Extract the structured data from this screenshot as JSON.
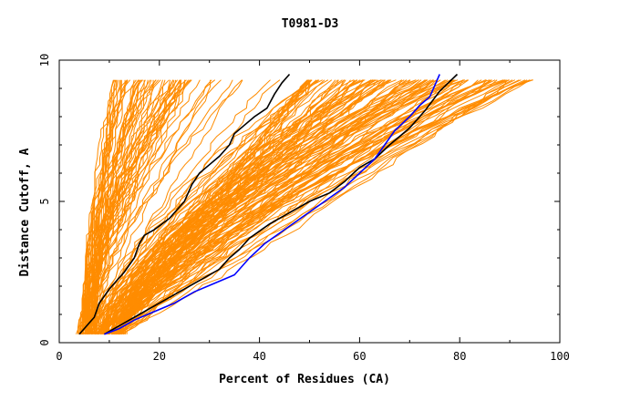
{
  "chart_data": {
    "type": "line",
    "title": "T0981-D3",
    "xlabel": "Percent of Residues (CA)",
    "ylabel": "Distance Cutoff, A",
    "xlim": [
      0,
      100
    ],
    "ylim": [
      0,
      10
    ],
    "x_ticks": [
      "0",
      "20",
      "40",
      "60",
      "80",
      "100"
    ],
    "y_ticks": [
      "0",
      "5",
      "10"
    ],
    "grid": false,
    "legend": "none",
    "colors": {
      "background_curves": "#ff8c00",
      "highlight_black": "#000000",
      "highlight_blue": "#0000ff"
    },
    "highlighted_series": [
      {
        "color": "#000000",
        "x": [
          4.0,
          5.0,
          6.0,
          7.0,
          8.0,
          10.0,
          13.0,
          15.0,
          16.0,
          17.0,
          19.0,
          22.0,
          25.0,
          26.5,
          28.0,
          30.0,
          32.0,
          34.0,
          35.0,
          37.0,
          39.0,
          41.5,
          43.0,
          44.5,
          46.0
        ],
        "y": [
          0.3,
          0.5,
          0.7,
          0.9,
          1.4,
          1.9,
          2.5,
          3.0,
          3.5,
          3.8,
          4.0,
          4.4,
          5.0,
          5.6,
          6.0,
          6.3,
          6.6,
          7.0,
          7.4,
          7.7,
          8.0,
          8.3,
          8.8,
          9.2,
          9.5
        ]
      },
      {
        "color": "#000000",
        "x": [
          9.0,
          12.0,
          16.0,
          20.0,
          24.0,
          28.0,
          32.0,
          34.0,
          36.0,
          38.0,
          42.0,
          46.0,
          50.0,
          54.0,
          57.0,
          60.0,
          63.0,
          66.0,
          70.0,
          73.0,
          76.0,
          79.5
        ],
        "y": [
          0.3,
          0.6,
          1.0,
          1.4,
          1.8,
          2.2,
          2.6,
          3.0,
          3.3,
          3.7,
          4.2,
          4.6,
          5.0,
          5.3,
          5.7,
          6.2,
          6.5,
          7.0,
          7.6,
          8.2,
          8.9,
          9.5
        ]
      },
      {
        "color": "#0000ff",
        "x": [
          9.0,
          12.0,
          15.0,
          19.0,
          23.0,
          27.0,
          31.0,
          35.0,
          38.0,
          41.0,
          45.0,
          49.0,
          53.0,
          57.0,
          60.0,
          63.0,
          65.0,
          67.0,
          70.0,
          72.0,
          74.0,
          75.0,
          76.0
        ],
        "y": [
          0.3,
          0.5,
          0.8,
          1.1,
          1.4,
          1.8,
          2.1,
          2.4,
          3.0,
          3.5,
          4.0,
          4.5,
          5.0,
          5.5,
          6.0,
          6.5,
          7.0,
          7.5,
          8.0,
          8.4,
          8.7,
          9.1,
          9.5
        ]
      }
    ]
  }
}
